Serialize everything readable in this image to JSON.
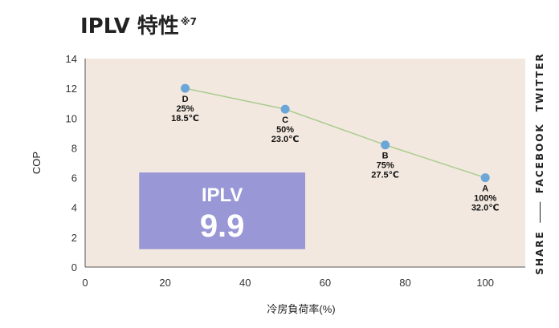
{
  "page": {
    "title": "IPLV 特性",
    "title_note": "※7"
  },
  "share": {
    "label": "SHARE",
    "links": [
      "FACEBOOK",
      "TWITTER"
    ]
  },
  "chart_data": {
    "type": "line",
    "xlabel": "冷房負荷率(%)",
    "ylabel": "COP",
    "xlim": [
      0,
      110
    ],
    "ylim": [
      0,
      14
    ],
    "xticks": [
      0,
      20,
      40,
      60,
      80,
      100
    ],
    "yticks": [
      0,
      2,
      4,
      6,
      8,
      10,
      12,
      14
    ],
    "grid": false,
    "points": [
      {
        "x": 25,
        "y": 12.0,
        "label": [
          "D",
          "25%",
          "18.5℃"
        ]
      },
      {
        "x": 50,
        "y": 10.6,
        "label": [
          "C",
          "50%",
          "23.0℃"
        ]
      },
      {
        "x": 75,
        "y": 8.2,
        "label": [
          "B",
          "75%",
          "27.5℃"
        ]
      },
      {
        "x": 100,
        "y": 6.0,
        "label": [
          "A",
          "100%",
          "32.0℃"
        ]
      }
    ],
    "callout": {
      "title": "IPLV",
      "value": "9.9"
    },
    "colors": {
      "plot_background": "#f3e8df",
      "line": "#a8cc8c",
      "marker": "#6aa6d8",
      "callout_box": "#9a97d6"
    }
  }
}
